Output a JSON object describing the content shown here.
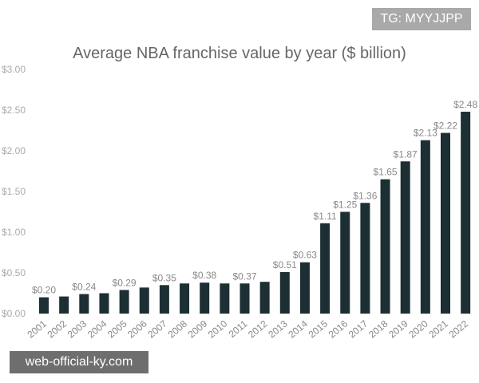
{
  "watermarks": {
    "top": "TG: MYYJJPP",
    "bottom": "web-official-ky.com"
  },
  "chart_data": {
    "type": "bar",
    "title": "Average NBA franchise value by year ($ billion)",
    "categories": [
      "2001",
      "2002",
      "2003",
      "2004",
      "2005",
      "2006",
      "2007",
      "2008",
      "2009",
      "2010",
      "2011",
      "2012",
      "2013",
      "2014",
      "2015",
      "2016",
      "2017",
      "2018",
      "2019",
      "2020",
      "2021",
      "2022"
    ],
    "values": [
      0.2,
      0.21,
      0.24,
      0.25,
      0.29,
      0.32,
      0.35,
      0.37,
      0.38,
      0.37,
      0.37,
      0.39,
      0.51,
      0.63,
      1.11,
      1.25,
      1.36,
      1.65,
      1.87,
      2.13,
      2.22,
      2.48
    ],
    "data_labels": [
      "$0.20",
      "",
      "$0.24",
      "",
      "$0.29",
      "",
      "$0.35",
      "",
      "$0.38",
      "",
      "$0.37",
      "",
      "$0.51",
      "$0.63",
      "$1.11",
      "$1.25",
      "$1.36",
      "$1.65",
      "$1.87",
      "$2.13",
      "$2.22",
      "$2.48"
    ],
    "yticks": [
      "$0.00",
      "$0.50",
      "$1.00",
      "$1.50",
      "$2.00",
      "$2.50",
      "$3.00"
    ],
    "ylim": [
      0,
      3
    ],
    "grid": false,
    "bar_color": "#1c2f33"
  }
}
